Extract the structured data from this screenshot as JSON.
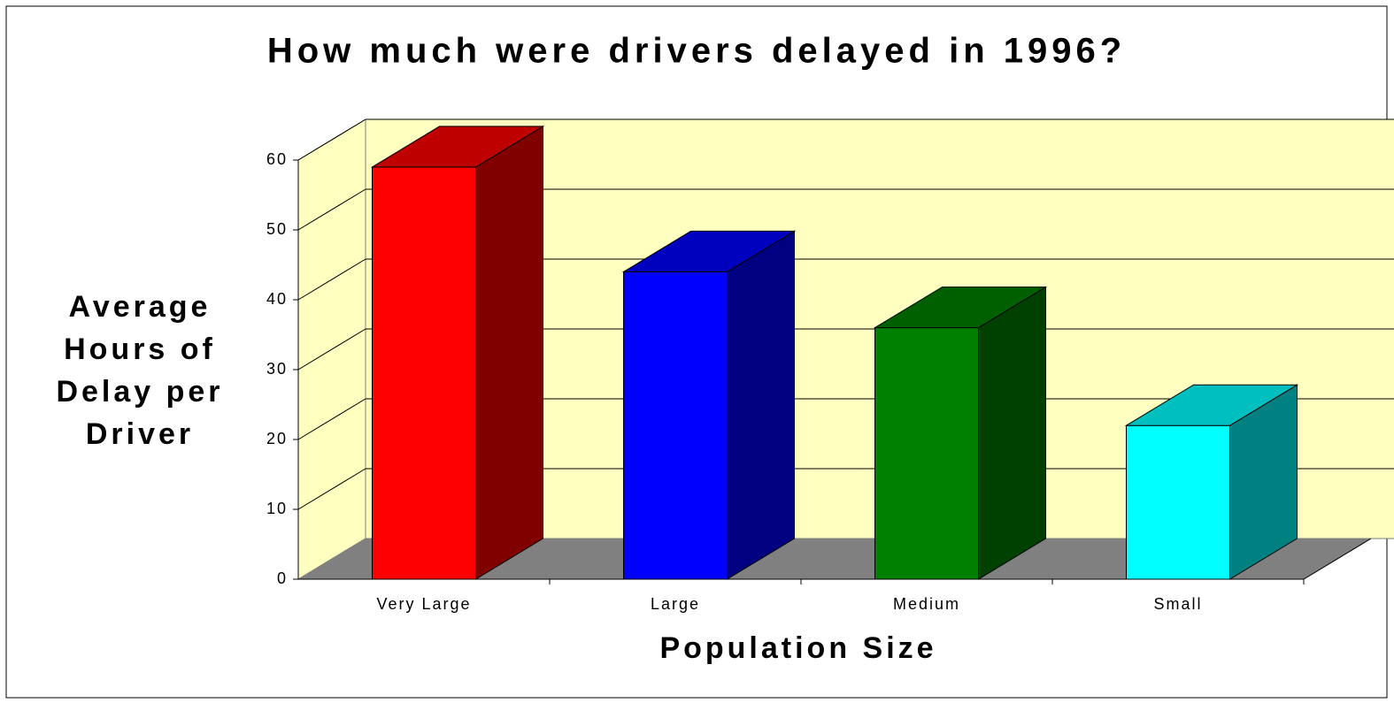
{
  "chart_data": {
    "type": "bar3d",
    "title": "How much were drivers delayed in 1996?",
    "x_label": "Population Size",
    "y_label": [
      "Average",
      "Hours of",
      "Delay per",
      "Driver"
    ],
    "categories": [
      "Very Large",
      "Large",
      "Medium",
      "Small"
    ],
    "values": [
      59,
      44,
      36,
      22
    ],
    "colors": [
      "#ff0000",
      "#0000ff",
      "#008000",
      "#00ffff"
    ],
    "ylim": [
      0,
      60
    ],
    "yticks": [
      0,
      10,
      20,
      30,
      40,
      50,
      60
    ],
    "grid": true
  }
}
